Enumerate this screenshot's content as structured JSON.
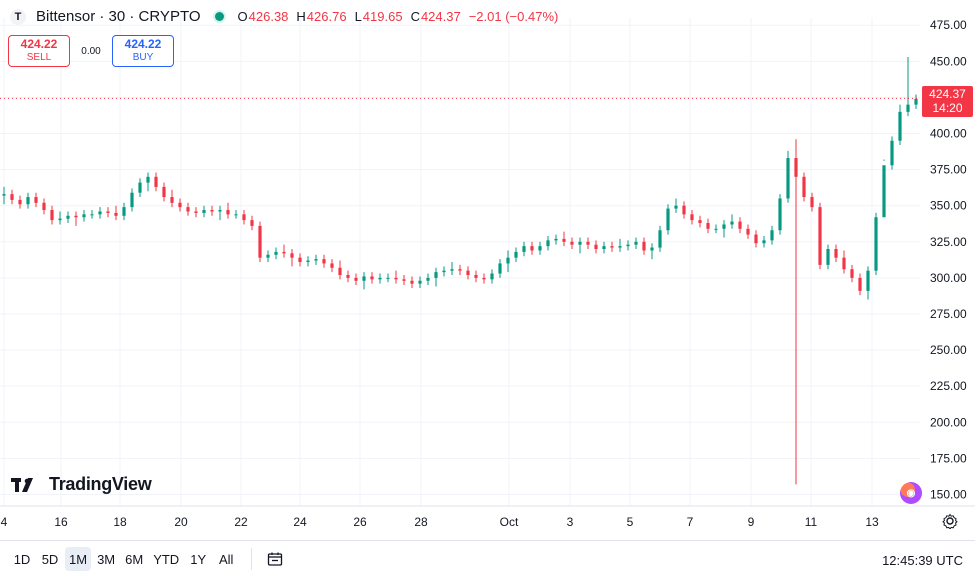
{
  "header": {
    "symbol_icon": "tao-icon",
    "title": "Bittensor · 30 · CRYPTO",
    "status": "market-open",
    "ohlc": {
      "o_label": "O",
      "o_value": "426.38",
      "h_label": "H",
      "h_value": "426.76",
      "l_label": "L",
      "l_value": "419.65",
      "c_label": "C",
      "c_value": "424.37",
      "change": "−2.01 (−0.47%)"
    }
  },
  "trade": {
    "sell_price": "424.22",
    "sell_label": "SELL",
    "spread": "0.00",
    "buy_price": "424.22",
    "buy_label": "BUY"
  },
  "price_marker": {
    "price": "424.37",
    "countdown": "14:20"
  },
  "branding": {
    "logo_text": "TradingView"
  },
  "bottom_bar": {
    "ranges": [
      "1D",
      "5D",
      "1M",
      "3M",
      "6M",
      "YTD",
      "1Y",
      "All"
    ],
    "active_range": "1M",
    "clock": "12:45:39 UTC"
  },
  "icons": {
    "calendar": "calendar-icon",
    "settings": "settings-icon",
    "logo": "tradingview-logo-icon"
  },
  "colors": {
    "up": "#089981",
    "down": "#f23645",
    "accent": "#2962ff",
    "grid": "#f0f3fa",
    "text": "#131722",
    "muted": "#787b86"
  },
  "chart_data": {
    "type": "line",
    "title": "Bittensor · 30 · CRYPTO",
    "xlabel": "",
    "ylabel": "",
    "x_axis_labels": [
      "4",
      "16",
      "18",
      "20",
      "22",
      "24",
      "26",
      "28",
      "Oct",
      "3",
      "5",
      "7",
      "9",
      "11",
      "13"
    ],
    "y_ticks": [
      150,
      175,
      200,
      225,
      250,
      275,
      300,
      325,
      350,
      375,
      400,
      425,
      450,
      475
    ],
    "ylim": [
      142,
      480
    ],
    "current_price": 424.37,
    "series": [
      {
        "x": [
          0,
          8,
          16,
          24,
          32,
          40,
          48,
          56,
          64,
          72,
          80,
          88,
          96,
          104,
          112,
          120,
          128,
          136,
          144,
          152,
          160,
          168,
          176,
          184,
          192,
          200,
          208,
          216,
          224,
          232,
          240,
          248,
          256,
          264,
          272,
          280,
          288,
          296,
          304,
          312,
          320,
          328,
          336,
          344,
          352,
          360,
          368,
          376,
          384,
          392,
          400,
          408,
          416,
          424,
          432,
          440,
          448,
          456,
          464,
          472,
          480,
          488,
          496,
          504,
          512,
          520,
          528,
          536,
          544,
          552,
          560,
          568,
          576,
          584,
          592,
          600,
          608,
          616,
          624,
          632,
          640,
          648,
          656,
          664,
          672,
          680,
          688,
          696,
          704,
          712,
          720,
          728,
          736,
          744,
          752,
          760,
          768,
          776,
          784,
          792,
          800,
          808,
          816,
          824,
          832,
          840,
          848,
          856,
          864,
          872,
          880,
          888,
          896,
          904,
          912
        ],
        "values": [
          358,
          354,
          351,
          356,
          352,
          347,
          340,
          341,
          343,
          342,
          344,
          344,
          346,
          345,
          343,
          349,
          359,
          366,
          370,
          363,
          356,
          352,
          349,
          346,
          345,
          347,
          346,
          347,
          344,
          344,
          340,
          336,
          314,
          316,
          318,
          317,
          314,
          311,
          312,
          313,
          310,
          307,
          302,
          300,
          298,
          301,
          299,
          300,
          300,
          299,
          298,
          296,
          298,
          300,
          304,
          305,
          306,
          305,
          302,
          300,
          299,
          303,
          310,
          314,
          318,
          322,
          319,
          322,
          326,
          327,
          325,
          323,
          325,
          323,
          320,
          322,
          321,
          322,
          323,
          325,
          319,
          321,
          333,
          348,
          350,
          344,
          340,
          338,
          334,
          334,
          337,
          339,
          334,
          330,
          324,
          326,
          333,
          355,
          383,
          370,
          356,
          349,
          309,
          320,
          314,
          306,
          300,
          291,
          305,
          342,
          378,
          395,
          415,
          420,
          424
        ]
      }
    ]
  }
}
